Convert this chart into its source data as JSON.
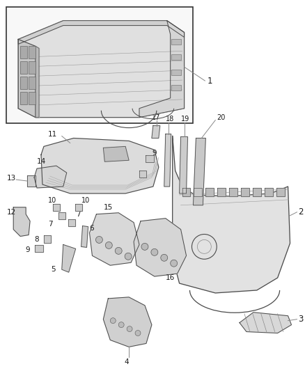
{
  "bg_color": "#ffffff",
  "line_color": "#4a4a4a",
  "fill_light": "#e8e8e8",
  "fill_mid": "#d8d8d8",
  "fill_dark": "#c8c8c8",
  "leader_color": "#888888",
  "label_color": "#1a1a1a",
  "figsize": [
    4.38,
    5.33
  ],
  "dpi": 100
}
